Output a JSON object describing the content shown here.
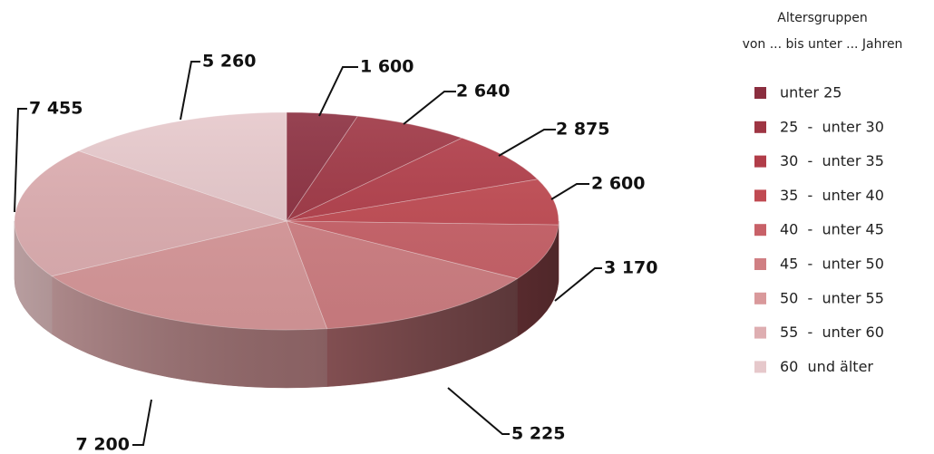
{
  "chart_data": {
    "type": "pie",
    "categories": [
      "unter 25",
      "25  -  unter 30",
      "30  -  unter 35",
      "35  -  unter 40",
      "40  -  unter 45",
      "45  -  unter 50",
      "50  -  unter 55",
      "55  -  unter 60",
      "60  und älter"
    ],
    "values": [
      1600,
      2640,
      2875,
      2600,
      3170,
      5225,
      7200,
      7455,
      5260
    ],
    "value_labels": [
      "1 600",
      "2 640",
      "2 875",
      "2 600",
      "3 170",
      "5 225",
      "7 200",
      "7 455",
      "5 260"
    ],
    "colors": [
      "#8b2e3f",
      "#9e3543",
      "#b13d49",
      "#c04a52",
      "#c86168",
      "#d07f83",
      "#d9999b",
      "#deaeb1",
      "#e6c8cb"
    ],
    "legend": {
      "title_line1": "Altersgruppen",
      "title_line2": "von ... bis unter ... Jahren",
      "position": "right"
    },
    "style": "3d-pie"
  }
}
